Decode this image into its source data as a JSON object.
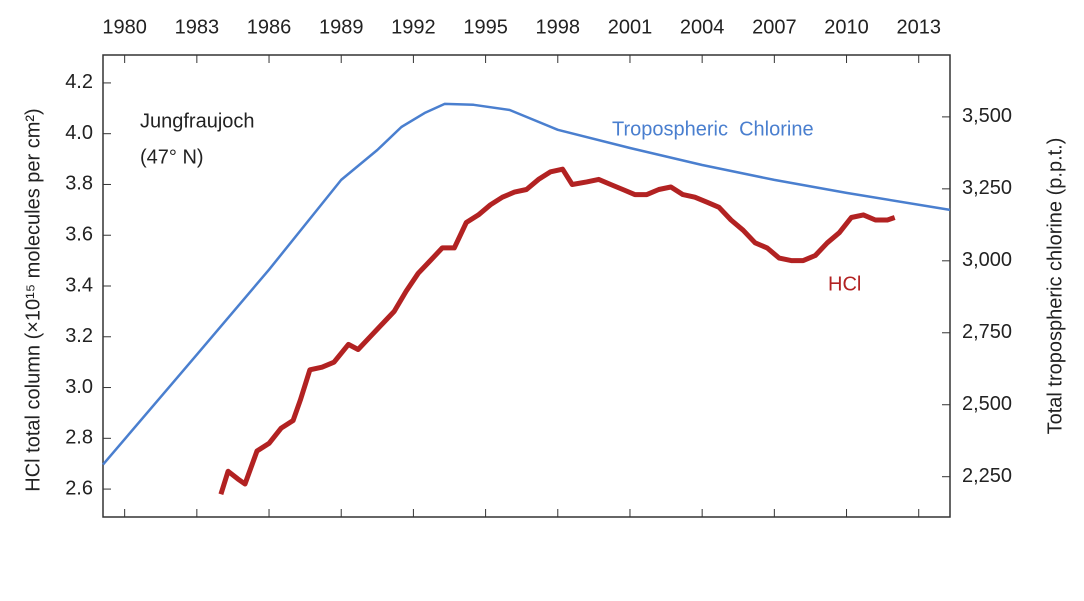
{
  "chart_data": {
    "type": "line",
    "annotation": [
      "Jungfraujoch",
      "(47° N)"
    ],
    "ylabel": "HCl total column (×10¹⁵ molecules per cm²)",
    "y2label": "Total tropospheric chlorine (p.p.t.)",
    "xlim": [
      1979.1,
      2014.3
    ],
    "xticks": [
      1980,
      1983,
      1986,
      1989,
      1992,
      1995,
      1998,
      2001,
      2004,
      2007,
      2010,
      2013
    ],
    "ylim": [
      2.49,
      4.31
    ],
    "yticks": [
      2.6,
      2.8,
      {
        "value": 3,
        "label": "3.0"
      },
      3.2,
      3.4,
      3.6,
      3.8,
      {
        "value": 4,
        "label": "4.0"
      },
      4.2
    ],
    "y2lim": [
      2110,
      3715
    ],
    "y2ticks": [
      {
        "value": 2250,
        "label": "2,250"
      },
      {
        "value": 2500,
        "label": "2,500"
      },
      {
        "value": 2750,
        "label": "2,750"
      },
      {
        "value": 3000,
        "label": "3,000"
      },
      {
        "value": 3250,
        "label": "3,250"
      },
      {
        "value": 3500,
        "label": "3,500"
      }
    ],
    "series": [
      {
        "name": "Tropospheric  Chlorine",
        "color": "#4a7fcf",
        "axis": "y2",
        "x": [
          1979.1,
          1983,
          1986,
          1989,
          1990.5,
          1991.5,
          1992.5,
          1993.3,
          1994.5,
          1996,
          1998,
          2001,
          2004,
          2007,
          2010,
          2014.3
        ],
        "values": [
          2292,
          2674,
          2969,
          3281,
          3385,
          3465,
          3515,
          3545,
          3542,
          3524,
          3455,
          3392,
          3333,
          3281,
          3236,
          3177
        ]
      },
      {
        "name": "HCl",
        "color": "#b22222",
        "x": [
          1984.0,
          1984.3,
          1984.7,
          1985.0,
          1985.5,
          1986.0,
          1986.5,
          1987.0,
          1987.3,
          1987.7,
          1988.2,
          1988.7,
          1989.3,
          1989.7,
          1990.2,
          1990.7,
          1991.2,
          1991.7,
          1992.2,
          1992.7,
          1993.2,
          1993.7,
          1994.2,
          1994.7,
          1995.2,
          1995.7,
          1996.2,
          1996.7,
          1997.2,
          1997.7,
          1998.2,
          1998.6,
          1999.2,
          1999.7,
          2000.2,
          2000.7,
          2001.2,
          2001.7,
          2002.2,
          2002.7,
          2003.2,
          2003.7,
          2004.2,
          2004.7,
          2005.2,
          2005.7,
          2006.2,
          2006.7,
          2007.2,
          2007.7,
          2008.2,
          2008.7,
          2009.2,
          2009.7,
          2010.2,
          2010.7,
          2011.2,
          2011.7,
          2012.0
        ],
        "values": [
          2.58,
          2.67,
          2.64,
          2.62,
          2.75,
          2.78,
          2.84,
          2.87,
          2.95,
          3.07,
          3.08,
          3.1,
          3.17,
          3.15,
          3.2,
          3.25,
          3.3,
          3.38,
          3.45,
          3.5,
          3.55,
          3.55,
          3.65,
          3.68,
          3.72,
          3.75,
          3.77,
          3.78,
          3.82,
          3.85,
          3.86,
          3.8,
          3.81,
          3.82,
          3.8,
          3.78,
          3.76,
          3.76,
          3.78,
          3.79,
          3.76,
          3.75,
          3.73,
          3.71,
          3.66,
          3.62,
          3.57,
          3.55,
          3.51,
          3.5,
          3.5,
          3.52,
          3.57,
          3.61,
          3.67,
          3.68,
          3.66,
          3.66,
          3.67
        ]
      }
    ]
  }
}
